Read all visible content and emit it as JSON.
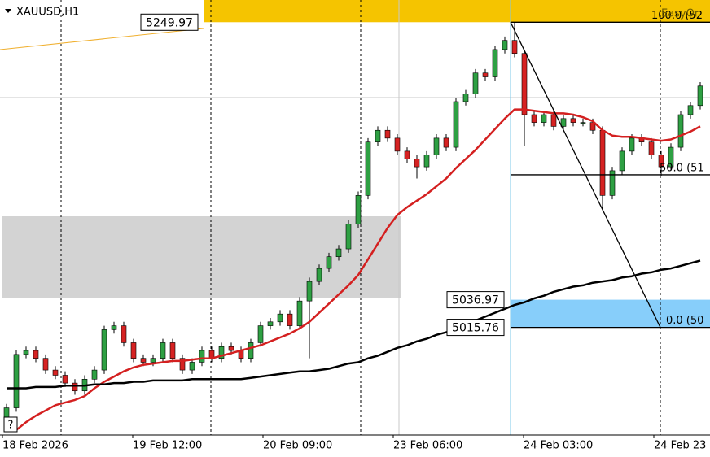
{
  "chart_data": {
    "type": "candlestick",
    "title": "XAUUSD,H1",
    "ylim": [
      4935,
      5267
    ],
    "open": [
      4945,
      4954,
      4995,
      4998,
      4992,
      4983,
      4979,
      4973,
      4967,
      4976,
      4983,
      5014,
      5017,
      5004,
      4992,
      4989,
      4992,
      5004,
      4992,
      4983,
      4989,
      4998,
      4992,
      5001,
      4998,
      4992,
      5004,
      5017,
      5020,
      5026,
      5017,
      5036,
      5051,
      5061,
      5070,
      5076,
      5095,
      5117,
      5158,
      5167,
      5161,
      5151,
      5145,
      5139,
      5148,
      5161,
      5154,
      5189,
      5195,
      5211,
      5208,
      5229,
      5236,
      5226,
      5179,
      5173,
      5179,
      5170,
      5176,
      5173,
      5173,
      5167,
      5117,
      5136,
      5151,
      5161,
      5158,
      5148,
      5139,
      5154,
      5179,
      5186
    ],
    "high": [
      4957,
      4998,
      5001,
      5001,
      4995,
      4986,
      4982,
      4976,
      4979,
      4986,
      5017,
      5020,
      5020,
      5007,
      4995,
      4995,
      5007,
      5007,
      4995,
      4992,
      5001,
      5001,
      5004,
      5004,
      5001,
      5007,
      5020,
      5023,
      5029,
      5029,
      5039,
      5054,
      5064,
      5073,
      5079,
      5098,
      5120,
      5161,
      5170,
      5170,
      5164,
      5154,
      5148,
      5151,
      5164,
      5164,
      5192,
      5198,
      5214,
      5214,
      5232,
      5239,
      5250,
      5229,
      5182,
      5182,
      5182,
      5179,
      5179,
      5176,
      5176,
      5170,
      5139,
      5154,
      5164,
      5164,
      5161,
      5151,
      5157,
      5182,
      5189,
      5204
    ],
    "low": [
      4942,
      4951,
      4992,
      4989,
      4980,
      4976,
      4970,
      4964,
      4964,
      4973,
      4980,
      5011,
      5001,
      4989,
      4986,
      4986,
      4989,
      4989,
      4980,
      4980,
      4986,
      4989,
      4989,
      4995,
      4989,
      4989,
      5001,
      5014,
      5017,
      5014,
      5014,
      4992,
      5048,
      5058,
      5067,
      5073,
      5092,
      5114,
      5155,
      5158,
      5148,
      5142,
      5130,
      5136,
      5145,
      5151,
      5151,
      5186,
      5192,
      5205,
      5205,
      5226,
      5223,
      5155,
      5170,
      5170,
      5167,
      5167,
      5170,
      5170,
      5164,
      5106,
      5114,
      5133,
      5148,
      5155,
      5145,
      5132,
      5136,
      5151,
      5176,
      5183
    ],
    "close": [
      4954,
      4995,
      4998,
      4992,
      4983,
      4979,
      4973,
      4967,
      4976,
      4983,
      5014,
      5017,
      5004,
      4992,
      4989,
      4992,
      5004,
      4992,
      4983,
      4989,
      4998,
      4992,
      5001,
      4998,
      4992,
      5004,
      5017,
      5020,
      5026,
      5017,
      5036,
      5051,
      5061,
      5070,
      5076,
      5095,
      5117,
      5158,
      5167,
      5161,
      5151,
      5145,
      5139,
      5148,
      5161,
      5154,
      5189,
      5195,
      5211,
      5208,
      5229,
      5236,
      5226,
      5179,
      5173,
      5179,
      5170,
      5176,
      5173,
      5173,
      5167,
      5117,
      5136,
      5151,
      5161,
      5158,
      5148,
      5139,
      5154,
      5179,
      5186,
      5201
    ],
    "bull_color": "#2ea043",
    "bear_color": "#d62222",
    "lines": [
      {
        "color": "#d42020",
        "values": [
          null,
          4937,
          4943,
          4948,
          4952,
          4956,
          4958,
          4960,
          4963,
          4969,
          4974,
          4978,
          4982,
          4985,
          4987,
          4988,
          4989,
          4990,
          4990,
          4991,
          4992,
          4992,
          4994,
          4996,
          4998,
          5000,
          5002,
          5005,
          5008,
          5011,
          5015,
          5020,
          5027,
          5034,
          5041,
          5048,
          5056,
          5068,
          5080,
          5092,
          5102,
          5108,
          5113,
          5118,
          5124,
          5130,
          5138,
          5145,
          5152,
          5160,
          5168,
          5176,
          5183,
          5183,
          5182,
          5181,
          5180,
          5180,
          5179,
          5177,
          5174,
          5167,
          5163,
          5162,
          5162,
          5161,
          5160,
          5159,
          5160,
          5163,
          5166,
          5170
        ]
      },
      {
        "color": "#000000",
        "values": [
          4969,
          4969,
          4969,
          4970,
          4970,
          4970,
          4971,
          4971,
          4971,
          4972,
          4972,
          4973,
          4973,
          4974,
          4974,
          4975,
          4975,
          4975,
          4975,
          4976,
          4976,
          4976,
          4976,
          4976,
          4976,
          4977,
          4978,
          4979,
          4980,
          4981,
          4982,
          4982,
          4983,
          4984,
          4986,
          4988,
          4989,
          4992,
          4994,
          4997,
          5000,
          5002,
          5005,
          5007,
          5010,
          5012,
          5015,
          5018,
          5021,
          5024,
          5027,
          5030,
          5033,
          5035,
          5038,
          5040,
          5043,
          5045,
          5047,
          5048,
          5050,
          5051,
          5052,
          5054,
          5055,
          5057,
          5058,
          5060,
          5061,
          5063,
          5065,
          5067
        ]
      }
    ],
    "zones": [
      {
        "color": "#f5c400",
        "from": 5249.97,
        "to": 5267
      },
      {
        "color": "#d3d3d3",
        "from": 5038,
        "to": 5101
      },
      {
        "color": "#87cefa",
        "from": 5015.76,
        "to": 5036.97
      }
    ],
    "price_labels": [
      5249.97,
      5036.97,
      5015.76
    ],
    "fib_levels": [
      {
        "value": 100,
        "label": "100.0 (52"
      },
      {
        "value": 50,
        "label": "50.0 (51"
      },
      {
        "value": 0,
        "label": "0.0 (50"
      }
    ],
    "annotation": "EasyOr",
    "help": "?",
    "xlabels": [
      "18 Feb 2026",
      "19 Feb 12:00",
      "20 Feb 09:00",
      "23 Feb 06:00",
      "24 Feb 03:00",
      "24 Feb 23"
    ]
  }
}
